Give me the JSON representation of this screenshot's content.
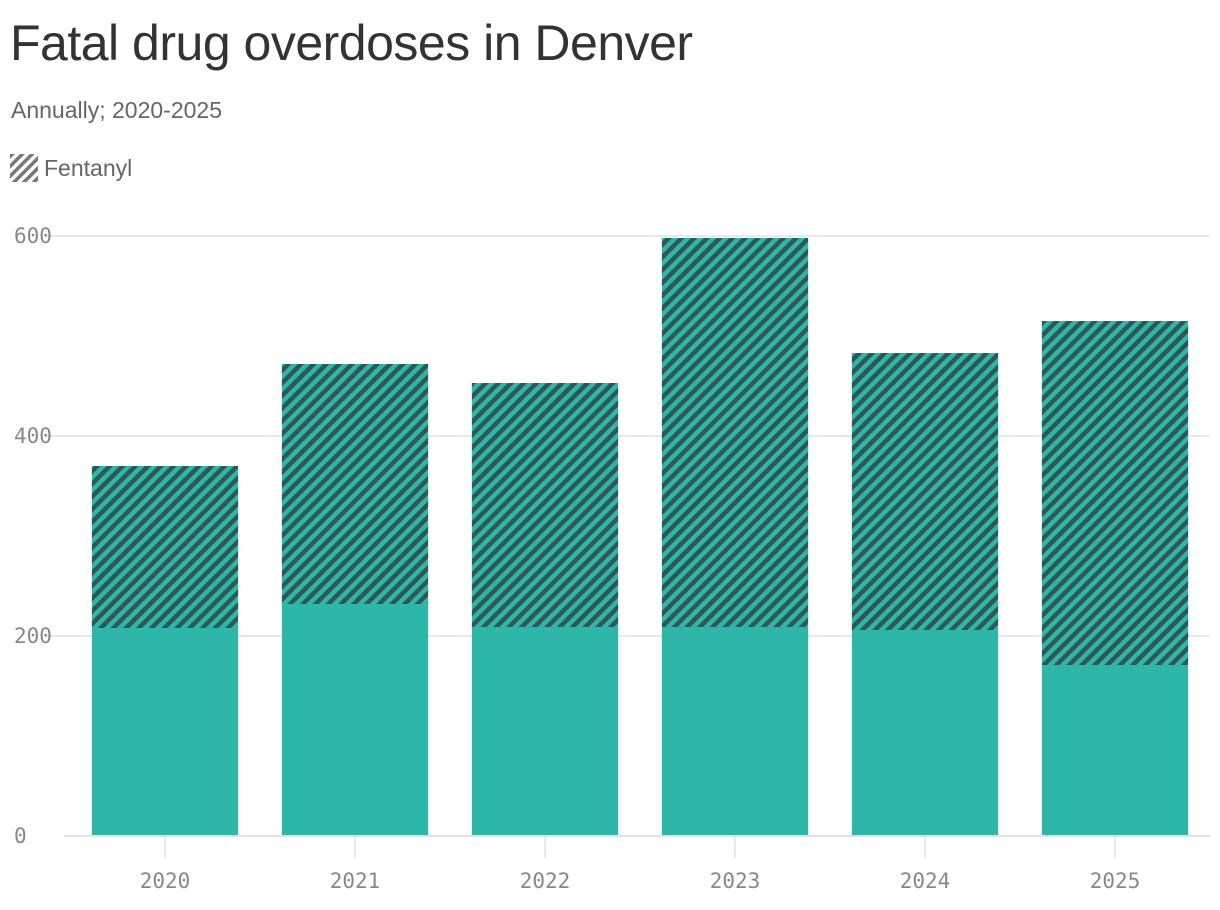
{
  "title": "Fatal drug overdoses in Denver",
  "subtitle": "Annually; 2020-2025",
  "legend": {
    "items": [
      {
        "label": "Fentanyl",
        "pattern": "hatched"
      }
    ]
  },
  "colors": {
    "base": "#2eb6a8",
    "hatch_dark": "#2f5754",
    "gridline": "#e2e2e2",
    "title": "#333333",
    "muted_text": "#666666",
    "tick_text": "#888888"
  },
  "chart_data": {
    "type": "bar",
    "stacked": true,
    "title": "Fatal drug overdoses in Denver",
    "subtitle": "Annually; 2020-2025",
    "categories": [
      "2020",
      "2021",
      "2022",
      "2023",
      "2024",
      "2025"
    ],
    "series": [
      {
        "values": [
          208,
          232,
          209,
          209,
          206,
          171
        ]
      },
      {
        "name": "Fentanyl",
        "values": [
          162,
          240,
          244,
          389,
          277,
          344
        ]
      }
    ],
    "totals": [
      370,
      472,
      453,
      598,
      483,
      515
    ],
    "yticks": [
      0,
      200,
      400,
      600
    ],
    "ylim": [
      0,
      600
    ],
    "xlabel": "",
    "ylabel": "",
    "grid": true,
    "legend_position": "top-left"
  }
}
